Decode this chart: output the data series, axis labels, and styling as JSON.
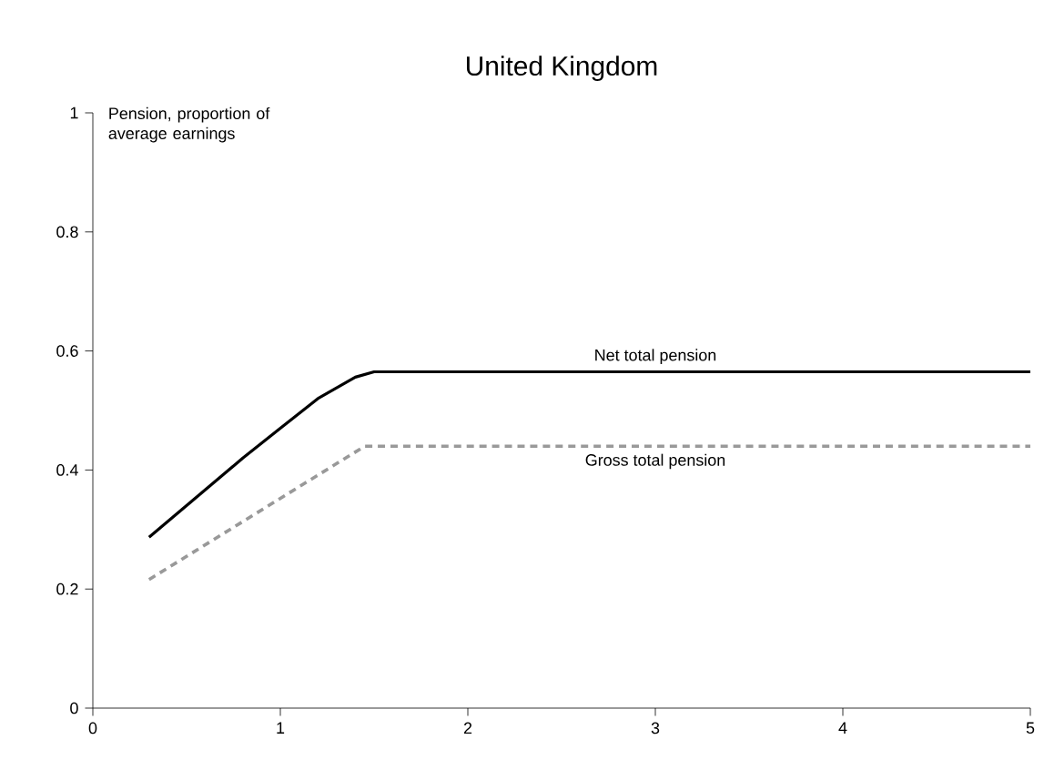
{
  "chart_data": {
    "type": "line",
    "title": "United Kingdom",
    "ylabel": "Pension, proportion of average earnings",
    "series": [
      {
        "name": "Net total pension",
        "color": "#000000",
        "line_style": "solid",
        "x": [
          0.3,
          0.8,
          1.0,
          1.2,
          1.4,
          1.5,
          5
        ],
        "values": [
          0.287,
          0.42,
          0.47,
          0.52,
          0.556,
          0.565,
          0.565
        ]
      },
      {
        "name": "Gross total pension",
        "color": "#999999",
        "line_style": "dashed",
        "x": [
          0.3,
          1.45,
          5
        ],
        "values": [
          0.216,
          0.44,
          0.44
        ]
      }
    ],
    "xlim": [
      0,
      5
    ],
    "xticks": [
      0,
      1,
      2,
      3,
      4,
      5
    ],
    "ylim": [
      0,
      1
    ],
    "yticks": [
      0,
      0.2,
      0.4,
      0.6,
      0.8,
      1
    ],
    "grid": false,
    "legend": false,
    "marker": "none"
  }
}
